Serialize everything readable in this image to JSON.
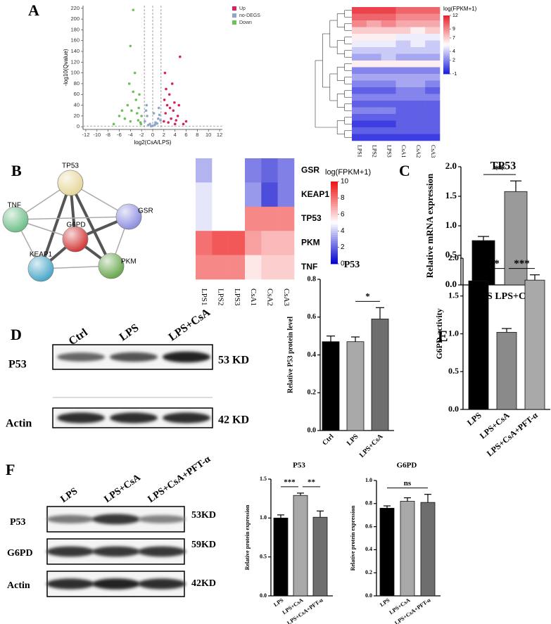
{
  "panel_labels": [
    "A",
    "B",
    "C",
    "D",
    "E",
    "F"
  ],
  "chart_data": [
    {
      "type": "scatter",
      "xlabel": "log2(CsA/LPS)",
      "ylabel": "-log10(Qvalue)",
      "xlim": [
        -12.5,
        12.5
      ],
      "xticks": [
        -12,
        -10,
        -8,
        -6,
        -4,
        -2,
        0,
        2,
        4,
        6,
        8,
        10,
        12
      ],
      "ylim": [
        -5,
        225
      ],
      "yticks": [
        0,
        20,
        40,
        60,
        80,
        100,
        120,
        140,
        160,
        180,
        200,
        220
      ],
      "thresholds_x": [
        -1.5,
        0,
        1.5
      ],
      "threshold_y": 1.3,
      "legend": "top-right",
      "series": [
        {
          "name": "Up",
          "color": "#d6245c",
          "x": [
            2,
            2.3,
            2.6,
            3,
            3.3,
            3.7,
            4,
            4.5,
            4.9,
            2.1,
            2.8,
            3.5,
            4.2,
            2.4,
            3.1,
            6,
            5.5,
            3.9,
            2.2,
            4.7
          ],
          "y": [
            10,
            25,
            40,
            60,
            15,
            30,
            5,
            20,
            130,
            50,
            8,
            80,
            12,
            70,
            35,
            10,
            5,
            45,
            100,
            40
          ]
        },
        {
          "name": "no-DEGS",
          "color": "#8fa6c8",
          "x": [
            -1.4,
            -1,
            -0.5,
            0,
            0.5,
            1,
            1.4,
            -1.2,
            -0.8,
            0.2,
            0.8,
            1.2,
            -0.3,
            0.4,
            -1.1,
            1.1
          ],
          "y": [
            10,
            20,
            5,
            2,
            8,
            15,
            12,
            30,
            3,
            25,
            6,
            22,
            1,
            4,
            40,
            35
          ]
        },
        {
          "name": "Down",
          "color": "#6fbf5a",
          "x": [
            -2,
            -2.5,
            -3,
            -3.5,
            -4,
            -2.2,
            -2.8,
            -3.2,
            -4.5,
            -5,
            -2.4,
            -3.8,
            -2.1,
            -6,
            -4,
            -2.6,
            -5.5,
            -4.2,
            -7,
            -3.5
          ],
          "y": [
            20,
            35,
            50,
            65,
            10,
            8,
            25,
            100,
            40,
            15,
            60,
            30,
            5,
            20,
            150,
            12,
            30,
            80,
            5,
            217
          ]
        }
      ]
    },
    {
      "type": "heatmap",
      "columns": [
        "LPS1",
        "LPS2",
        "LPS3",
        "CsA1",
        "CsA2",
        "CsA3"
      ],
      "values": [
        [
          11,
          11,
          11,
          10,
          10,
          10
        ],
        [
          10,
          10,
          10,
          9,
          9,
          9
        ],
        [
          9,
          8,
          9,
          8,
          8,
          8
        ],
        [
          7,
          7,
          7,
          7,
          6,
          7
        ],
        [
          6,
          6,
          6,
          5,
          5,
          5
        ],
        [
          5,
          5,
          5,
          4,
          5,
          4
        ],
        [
          4,
          4,
          4,
          4,
          4,
          4
        ],
        [
          3,
          3,
          4,
          3,
          3,
          3
        ],
        [
          6,
          6,
          6,
          6,
          6,
          6
        ],
        [
          2,
          2,
          2,
          2,
          2,
          2
        ],
        [
          3,
          3,
          3,
          3,
          3,
          3
        ],
        [
          2,
          2,
          2,
          3,
          3,
          2
        ],
        [
          1,
          1,
          1,
          2,
          2,
          1
        ],
        [
          2,
          2,
          2,
          2,
          2,
          2
        ],
        [
          1,
          1,
          1,
          1,
          1,
          1
        ],
        [
          2,
          2,
          2,
          1,
          1,
          1
        ],
        [
          1,
          1,
          1,
          1,
          1,
          1
        ],
        [
          0,
          0,
          0,
          1,
          1,
          1
        ],
        [
          1,
          1,
          1,
          1,
          1,
          1
        ],
        [
          0,
          0,
          0,
          0,
          0,
          0
        ]
      ],
      "zlim": [
        -1,
        12
      ],
      "zticks": [
        -1,
        2,
        4,
        7,
        9,
        12
      ],
      "colorbar_label": "log(FPKM+1)",
      "colors": [
        "#1a1adb",
        "#ffffff",
        "#e8202a"
      ]
    },
    {
      "type": "heatmap",
      "columns": [
        "LPS1",
        "LPS2",
        "LPS3",
        "CsA1",
        "CsA2",
        "CsA3"
      ],
      "rows": [
        "GSR",
        "KEAP1",
        "TP53",
        "PKM",
        "TNF"
      ],
      "values": [
        [
          3.5,
          5,
          5,
          2.5,
          2,
          2.5
        ],
        [
          4.5,
          5,
          5,
          3,
          1.5,
          2.5
        ],
        [
          4.5,
          5,
          5,
          7.5,
          7.5,
          7.5
        ],
        [
          8,
          8.5,
          8.5,
          7,
          6.5,
          6.5
        ],
        [
          7.5,
          7.5,
          7.5,
          5.5,
          6,
          6
        ]
      ],
      "zlim": [
        0,
        10
      ],
      "zticks": [
        0,
        2,
        4,
        6,
        8,
        10
      ],
      "colorbar_label": "log(FPKM+1)",
      "colors": [
        "#0000cc",
        "#ffffff",
        "#ee1111"
      ]
    },
    {
      "type": "bar",
      "title": "TP53",
      "ylabel": "Relative mRNA expression",
      "categories": [
        "LPS",
        "LPS+CsA"
      ],
      "values": [
        0.75,
        1.58
      ],
      "errors": [
        0.07,
        0.18
      ],
      "colors": [
        "#000000",
        "#9a9a9a"
      ],
      "ylim": [
        0,
        2
      ],
      "yticks": [
        {
          "value": 0,
          "label": "0.0"
        },
        0.5,
        {
          "value": 1,
          "label": "1.0"
        },
        1.5,
        {
          "value": 2,
          "label": "2.0"
        }
      ],
      "annotations": [
        {
          "text": "**",
          "between": [
            0,
            1
          ]
        }
      ]
    },
    {
      "type": "bar",
      "title": "P53",
      "ylabel": "Relative P53 protein level",
      "categories": [
        "Ctrl",
        "LPS",
        "LPS+CsA"
      ],
      "values": [
        0.47,
        0.47,
        0.59
      ],
      "errors": [
        0.03,
        0.025,
        0.06
      ],
      "colors": [
        "#000000",
        "#a8a8a8",
        "#6e6e6e"
      ],
      "ylim": [
        0,
        0.8
      ],
      "yticks": [
        {
          "value": 0,
          "label": "0.0"
        },
        0.2,
        0.4,
        0.6,
        0.8
      ],
      "annotations": [
        {
          "text": "*",
          "between": [
            1,
            2
          ]
        }
      ]
    },
    {
      "type": "bar",
      "ylabel": "G6PD activity",
      "categories": [
        "LPS",
        "LPS+CsA",
        "LPS+CsA+PFT-α"
      ],
      "values": [
        1.7,
        1.02,
        1.71
      ],
      "errors": [
        0.03,
        0.05,
        0.07
      ],
      "colors": [
        "#000000",
        "#8a8a8a",
        "#a9a9a9"
      ],
      "ylim": [
        0,
        2
      ],
      "yticks": [
        {
          "value": 0,
          "label": "0.0"
        },
        0.5,
        {
          "value": 1,
          "label": "1.0"
        },
        1.5,
        {
          "value": 2,
          "label": "2.0"
        }
      ],
      "annotations": [
        {
          "text": "***",
          "between": [
            0,
            1
          ]
        },
        {
          "text": "***",
          "between": [
            1,
            2
          ]
        }
      ]
    },
    {
      "type": "bar",
      "title": "P53",
      "ylabel": "Relative protein expression",
      "categories": [
        "LPS",
        "LPS+CsA",
        "LPS+CsA+PFT-α"
      ],
      "values": [
        1.0,
        1.29,
        1.01
      ],
      "errors": [
        0.04,
        0.03,
        0.08
      ],
      "colors": [
        "#000000",
        "#a8a8a8",
        "#6e6e6e"
      ],
      "ylim": [
        0,
        1.5
      ],
      "yticks": [
        {
          "value": 0,
          "label": "0.0"
        },
        0.5,
        {
          "value": 1,
          "label": "1.0"
        },
        1.5
      ],
      "annotations": [
        {
          "text": "***",
          "between": [
            0,
            1
          ]
        },
        {
          "text": "**",
          "between": [
            1,
            2
          ]
        }
      ]
    },
    {
      "type": "bar",
      "title": "G6PD",
      "ylabel": "Relative protein expression",
      "categories": [
        "LPS",
        "LPS+CsA",
        "LPS+CsA+PFT-α"
      ],
      "values": [
        0.76,
        0.82,
        0.81
      ],
      "errors": [
        0.02,
        0.03,
        0.07
      ],
      "colors": [
        "#000000",
        "#a8a8a8",
        "#6e6e6e"
      ],
      "ylim": [
        0,
        1
      ],
      "yticks": [
        {
          "value": 0,
          "label": "0.0"
        },
        0.2,
        0.4,
        0.6,
        0.8,
        {
          "value": 1,
          "label": "1.0"
        }
      ],
      "annotations": [
        {
          "text": "ns",
          "between": [
            0,
            2
          ]
        }
      ]
    }
  ],
  "network": {
    "nodes": [
      {
        "label": "TP53",
        "color": "#e6d79a"
      },
      {
        "label": "TNF",
        "color": "#6fc08a"
      },
      {
        "label": "G6PD",
        "color": "#d23a3a"
      },
      {
        "label": "GSR",
        "color": "#8f90e0"
      },
      {
        "label": "KEAP1",
        "color": "#4aa8c8"
      },
      {
        "label": "PKM",
        "color": "#6aa84f"
      }
    ],
    "edges": [
      {
        "from": 0,
        "to": 1,
        "strong": false
      },
      {
        "from": 0,
        "to": 2,
        "strong": true
      },
      {
        "from": 0,
        "to": 3,
        "strong": false
      },
      {
        "from": 0,
        "to": 4,
        "strong": true
      },
      {
        "from": 0,
        "to": 5,
        "strong": true
      },
      {
        "from": 1,
        "to": 2,
        "strong": false
      },
      {
        "from": 1,
        "to": 3,
        "strong": false
      },
      {
        "from": 1,
        "to": 4,
        "strong": false
      },
      {
        "from": 2,
        "to": 3,
        "strong": true
      },
      {
        "from": 2,
        "to": 4,
        "strong": true
      },
      {
        "from": 2,
        "to": 5,
        "strong": true
      },
      {
        "from": 3,
        "to": 5,
        "strong": false
      },
      {
        "from": 4,
        "to": 5,
        "strong": false
      }
    ]
  },
  "blots": [
    {
      "lanes": [
        "Ctrl",
        "LPS",
        "LPS+CsA"
      ],
      "rows": [
        {
          "name": "P53",
          "size": "53 KD"
        },
        {
          "name": "Actin",
          "size": "42 KD"
        }
      ]
    },
    {
      "lanes": [
        "LPS",
        "LPS+CsA",
        "LPS+CsA+PFT-α"
      ],
      "rows": [
        {
          "name": "P53",
          "size": "53KD"
        },
        {
          "name": "G6PD",
          "size": "59KD"
        },
        {
          "name": "Actin",
          "size": "42KD"
        }
      ]
    }
  ]
}
